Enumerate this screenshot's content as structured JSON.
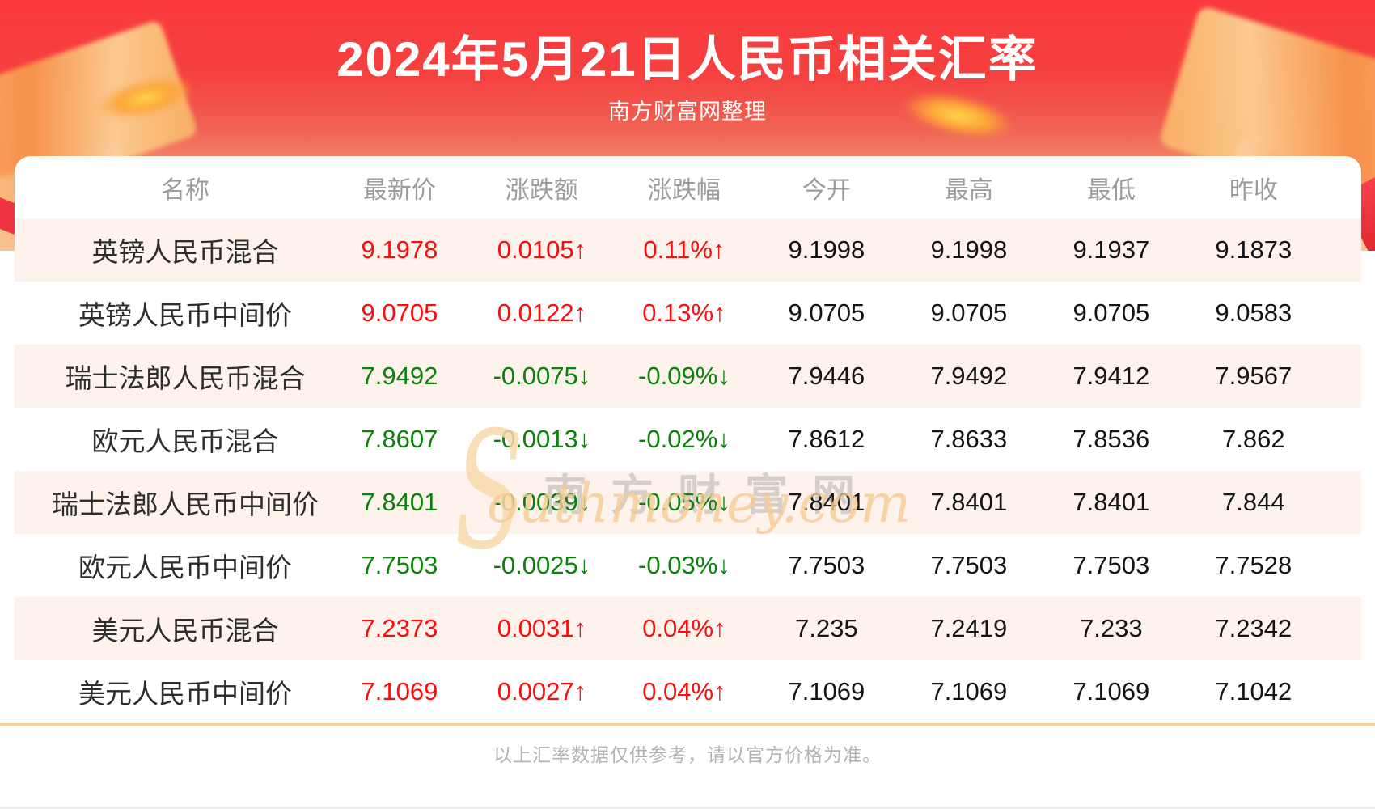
{
  "header": {
    "title": "2024年5月21日人民币相关汇率",
    "subtitle": "南方财富网整理"
  },
  "table": {
    "headers": [
      "名称",
      "最新价",
      "涨跌额",
      "涨跌幅",
      "今开",
      "最高",
      "最低",
      "昨收"
    ],
    "rows": [
      {
        "name": "英镑人民币混合",
        "latest": "9.1978",
        "change": "0.0105↑",
        "change_pct": "0.11%↑",
        "open": "9.1998",
        "high": "9.1998",
        "low": "9.1937",
        "prev_close": "9.1873"
      },
      {
        "name": "英镑人民币中间价",
        "latest": "9.0705",
        "change": "0.0122↑",
        "change_pct": "0.13%↑",
        "open": "9.0705",
        "high": "9.0705",
        "low": "9.0705",
        "prev_close": "9.0583"
      },
      {
        "name": "瑞士法郎人民币混合",
        "latest": "7.9492",
        "change": "-0.0075↓",
        "change_pct": "-0.09%↓",
        "open": "7.9446",
        "high": "7.9492",
        "low": "7.9412",
        "prev_close": "7.9567"
      },
      {
        "name": "欧元人民币混合",
        "latest": "7.8607",
        "change": "-0.0013↓",
        "change_pct": "-0.02%↓",
        "open": "7.8612",
        "high": "7.8633",
        "low": "7.8536",
        "prev_close": "7.862"
      },
      {
        "name": "瑞士法郎人民币中间价",
        "latest": "7.8401",
        "change": "-0.0039↓",
        "change_pct": "-0.05%↓",
        "open": "7.8401",
        "high": "7.8401",
        "low": "7.8401",
        "prev_close": "7.844"
      },
      {
        "name": "欧元人民币中间价",
        "latest": "7.7503",
        "change": "-0.0025↓",
        "change_pct": "-0.03%↓",
        "open": "7.7503",
        "high": "7.7503",
        "low": "7.7503",
        "prev_close": "7.7528"
      },
      {
        "name": "美元人民币混合",
        "latest": "7.2373",
        "change": "0.0031↑",
        "change_pct": "0.04%↑",
        "open": "7.235",
        "high": "7.2419",
        "low": "7.233",
        "prev_close": "7.2342"
      },
      {
        "name": "美元人民币中间价",
        "latest": "7.1069",
        "change": "0.0027↑",
        "change_pct": "0.04%↑",
        "open": "7.1069",
        "high": "7.1069",
        "low": "7.1069",
        "prev_close": "7.1042"
      }
    ]
  },
  "watermark": {
    "initial": "S",
    "cjk": "南方财富网",
    "latin": "outhmoney.com"
  },
  "footer": {
    "note": "以上汇率数据仅供参考，请以官方价格为准。"
  },
  "colors": {
    "up": "#f90d0d",
    "down": "#0a820a",
    "row_alt": "#fdf3ec",
    "divider": "#f6d2a2",
    "header_red": "#f5413f"
  }
}
